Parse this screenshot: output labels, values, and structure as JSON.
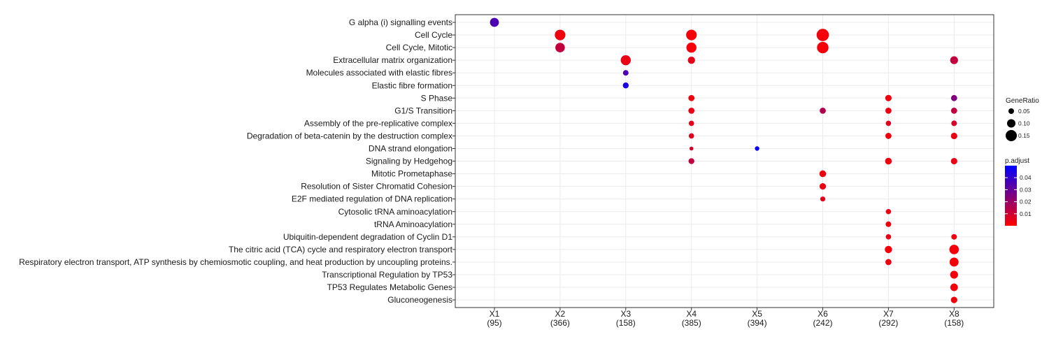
{
  "chart_data": {
    "type": "scatter",
    "subtype": "dot-plot",
    "title": "",
    "xlabel": "",
    "ylabel": "",
    "clusters": [
      {
        "label": "X1",
        "count": "(95)"
      },
      {
        "label": "X2",
        "count": "(366)"
      },
      {
        "label": "X3",
        "count": "(158)"
      },
      {
        "label": "X4",
        "count": "(385)"
      },
      {
        "label": "X5",
        "count": "(394)"
      },
      {
        "label": "X6",
        "count": "(242)"
      },
      {
        "label": "X7",
        "count": "(292)"
      },
      {
        "label": "X8",
        "count": "(158)"
      }
    ],
    "terms": [
      "G alpha (i) signalling events",
      "Cell Cycle",
      "Cell Cycle, Mitotic",
      "Extracellular matrix organization",
      "Molecules associated with elastic fibres",
      "Elastic fibre formation",
      "S Phase",
      "G1/S Transition",
      "Assembly of the pre-replicative complex",
      "Degradation of beta-catenin by the destruction complex",
      "DNA strand elongation",
      "Signaling by Hedgehog",
      "Mitotic Prometaphase",
      "Resolution of Sister Chromatid Cohesion",
      "E2F mediated regulation of DNA replication",
      "Cytosolic tRNA aminoacylation",
      "tRNA Aminoacylation",
      "Ubiquitin-dependent degradation of Cyclin D1",
      "The citric acid (TCA) cycle and respiratory electron transport",
      "Respiratory electron transport, ATP synthesis by chemiosmotic coupling, and heat production by uncoupling proteins.",
      "Transcriptional Regulation by TP53",
      "TP53 Regulates Metabolic Genes",
      "Gluconeogenesis"
    ],
    "points": [
      {
        "cluster": "X1",
        "term": "G alpha (i) signalling events",
        "gene_ratio": 0.11,
        "p_adjust": 0.035
      },
      {
        "cluster": "X2",
        "term": "Cell Cycle",
        "gene_ratio": 0.14,
        "p_adjust": 0.003
      },
      {
        "cluster": "X2",
        "term": "Cell Cycle, Mitotic",
        "gene_ratio": 0.12,
        "p_adjust": 0.012
      },
      {
        "cluster": "X3",
        "term": "Extracellular matrix organization",
        "gene_ratio": 0.13,
        "p_adjust": 0.004
      },
      {
        "cluster": "X3",
        "term": "Molecules associated with elastic fibres",
        "gene_ratio": 0.05,
        "p_adjust": 0.035
      },
      {
        "cluster": "X3",
        "term": "Elastic fibre formation",
        "gene_ratio": 0.055,
        "p_adjust": 0.045
      },
      {
        "cluster": "X4",
        "term": "Cell Cycle",
        "gene_ratio": 0.14,
        "p_adjust": 0.002
      },
      {
        "cluster": "X4",
        "term": "Cell Cycle, Mitotic",
        "gene_ratio": 0.13,
        "p_adjust": 0.002
      },
      {
        "cluster": "X4",
        "term": "Extracellular matrix organization",
        "gene_ratio": 0.08,
        "p_adjust": 0.005
      },
      {
        "cluster": "X4",
        "term": "S Phase",
        "gene_ratio": 0.06,
        "p_adjust": 0.003
      },
      {
        "cluster": "X4",
        "term": "G1/S Transition",
        "gene_ratio": 0.06,
        "p_adjust": 0.004
      },
      {
        "cluster": "X4",
        "term": "Assembly of the pre-replicative complex",
        "gene_ratio": 0.045,
        "p_adjust": 0.005
      },
      {
        "cluster": "X4",
        "term": "Degradation of beta-catenin by the destruction complex",
        "gene_ratio": 0.045,
        "p_adjust": 0.006
      },
      {
        "cluster": "X4",
        "term": "DNA strand elongation",
        "gene_ratio": 0.02,
        "p_adjust": 0.008
      },
      {
        "cluster": "X4",
        "term": "Signaling by Hedgehog",
        "gene_ratio": 0.055,
        "p_adjust": 0.012
      },
      {
        "cluster": "X5",
        "term": "DNA strand elongation",
        "gene_ratio": 0.03,
        "p_adjust": 0.048
      },
      {
        "cluster": "X6",
        "term": "Cell Cycle",
        "gene_ratio": 0.17,
        "p_adjust": 0.002
      },
      {
        "cluster": "X6",
        "term": "Cell Cycle, Mitotic",
        "gene_ratio": 0.155,
        "p_adjust": 0.002
      },
      {
        "cluster": "X6",
        "term": "G1/S Transition",
        "gene_ratio": 0.06,
        "p_adjust": 0.015
      },
      {
        "cluster": "X6",
        "term": "Mitotic Prometaphase",
        "gene_ratio": 0.07,
        "p_adjust": 0.003
      },
      {
        "cluster": "X6",
        "term": "Resolution of Sister Chromatid Cohesion",
        "gene_ratio": 0.065,
        "p_adjust": 0.004
      },
      {
        "cluster": "X6",
        "term": "E2F mediated regulation of DNA replication",
        "gene_ratio": 0.04,
        "p_adjust": 0.005
      },
      {
        "cluster": "X7",
        "term": "S Phase",
        "gene_ratio": 0.065,
        "p_adjust": 0.003
      },
      {
        "cluster": "X7",
        "term": "G1/S Transition",
        "gene_ratio": 0.06,
        "p_adjust": 0.004
      },
      {
        "cluster": "X7",
        "term": "Assembly of the pre-replicative complex",
        "gene_ratio": 0.045,
        "p_adjust": 0.006
      },
      {
        "cluster": "X7",
        "term": "Degradation of beta-catenin by the destruction complex",
        "gene_ratio": 0.06,
        "p_adjust": 0.003
      },
      {
        "cluster": "X7",
        "term": "Signaling by Hedgehog",
        "gene_ratio": 0.07,
        "p_adjust": 0.003
      },
      {
        "cluster": "X7",
        "term": "Cytosolic tRNA aminoacylation",
        "gene_ratio": 0.045,
        "p_adjust": 0.004
      },
      {
        "cluster": "X7",
        "term": "tRNA Aminoacylation",
        "gene_ratio": 0.05,
        "p_adjust": 0.003
      },
      {
        "cluster": "X7",
        "term": "Ubiquitin-dependent degradation of Cyclin D1",
        "gene_ratio": 0.045,
        "p_adjust": 0.004
      },
      {
        "cluster": "X7",
        "term": "The citric acid (TCA) cycle and respiratory electron transport",
        "gene_ratio": 0.08,
        "p_adjust": 0.002
      },
      {
        "cluster": "X7",
        "term": "Respiratory electron transport, ATP synthesis by chemiosmotic coupling, and heat production by uncoupling proteins.",
        "gene_ratio": 0.06,
        "p_adjust": 0.003
      },
      {
        "cluster": "X8",
        "term": "Extracellular matrix organization",
        "gene_ratio": 0.09,
        "p_adjust": 0.012
      },
      {
        "cluster": "X8",
        "term": "S Phase",
        "gene_ratio": 0.06,
        "p_adjust": 0.025
      },
      {
        "cluster": "X8",
        "term": "G1/S Transition",
        "gene_ratio": 0.06,
        "p_adjust": 0.013
      },
      {
        "cluster": "X8",
        "term": "Assembly of the pre-replicative complex",
        "gene_ratio": 0.05,
        "p_adjust": 0.008
      },
      {
        "cluster": "X8",
        "term": "Degradation of beta-catenin by the destruction complex",
        "gene_ratio": 0.065,
        "p_adjust": 0.004
      },
      {
        "cluster": "X8",
        "term": "Signaling by Hedgehog",
        "gene_ratio": 0.065,
        "p_adjust": 0.004
      },
      {
        "cluster": "X8",
        "term": "Ubiquitin-dependent degradation of Cyclin D1",
        "gene_ratio": 0.05,
        "p_adjust": 0.003
      },
      {
        "cluster": "X8",
        "term": "The citric acid (TCA) cycle and respiratory electron transport",
        "gene_ratio": 0.12,
        "p_adjust": 0.002
      },
      {
        "cluster": "X8",
        "term": "Respiratory electron transport, ATP synthesis by chemiosmotic coupling, and heat production by uncoupling proteins.",
        "gene_ratio": 0.11,
        "p_adjust": 0.002
      },
      {
        "cluster": "X8",
        "term": "Transcriptional Regulation by TP53",
        "gene_ratio": 0.09,
        "p_adjust": 0.002
      },
      {
        "cluster": "X8",
        "term": "TP53 Regulates Metabolic Genes",
        "gene_ratio": 0.085,
        "p_adjust": 0.002
      },
      {
        "cluster": "X8",
        "term": "Gluconeogenesis",
        "gene_ratio": 0.065,
        "p_adjust": 0.003
      }
    ],
    "size_legend": {
      "title": "GeneRatio",
      "entries": [
        {
          "label": "0.05",
          "value": 0.05
        },
        {
          "label": "0.10",
          "value": 0.1
        },
        {
          "label": "0.15",
          "value": 0.15
        }
      ]
    },
    "color_legend": {
      "title": "p.adjust",
      "range": [
        0.0,
        0.05
      ],
      "low_color": "#ff0000",
      "high_color": "#0000ff",
      "ticks": [
        {
          "label": "0.04",
          "value": 0.04
        },
        {
          "label": "0.03",
          "value": 0.03
        },
        {
          "label": "0.02",
          "value": 0.02
        },
        {
          "label": "0.01",
          "value": 0.01
        }
      ]
    },
    "grid": true,
    "legend_position": "right"
  }
}
